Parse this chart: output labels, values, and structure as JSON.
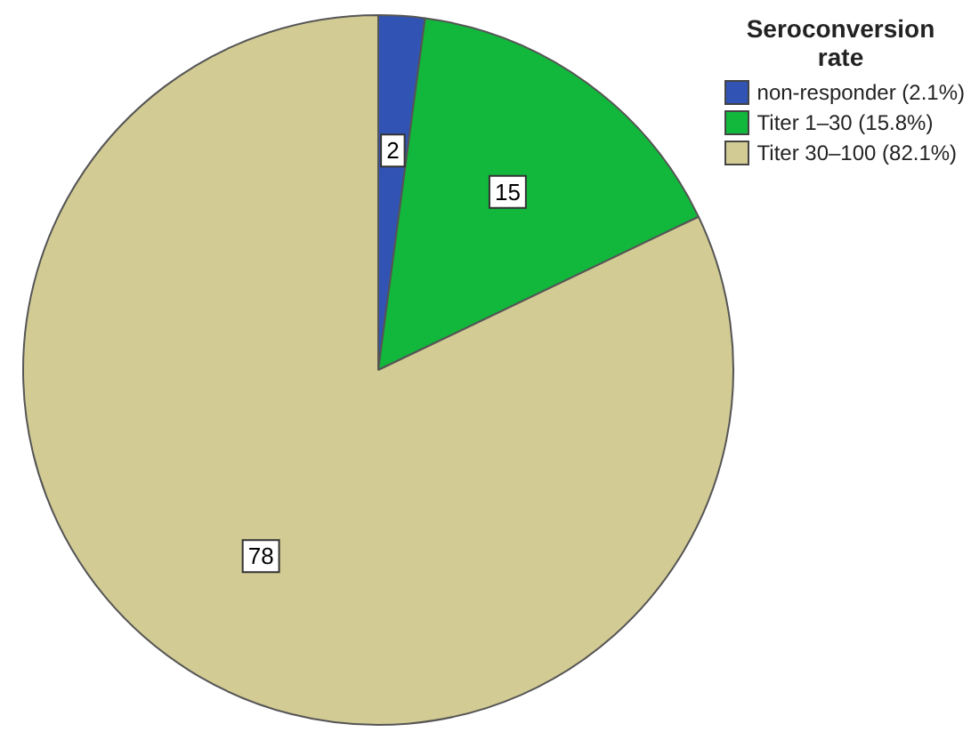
{
  "chart_data": {
    "type": "pie",
    "legend_title": "Seroconversion rate",
    "categories": [
      "non-responder (2.1%)",
      "Titer 1–30 (15.8%)",
      "Titer 30–100 (82.1%)"
    ],
    "values": [
      2,
      15,
      78
    ],
    "colors": [
      "#3153b4",
      "#12b83c",
      "#d3cb94"
    ],
    "data_labels": true,
    "legend": "top right"
  }
}
